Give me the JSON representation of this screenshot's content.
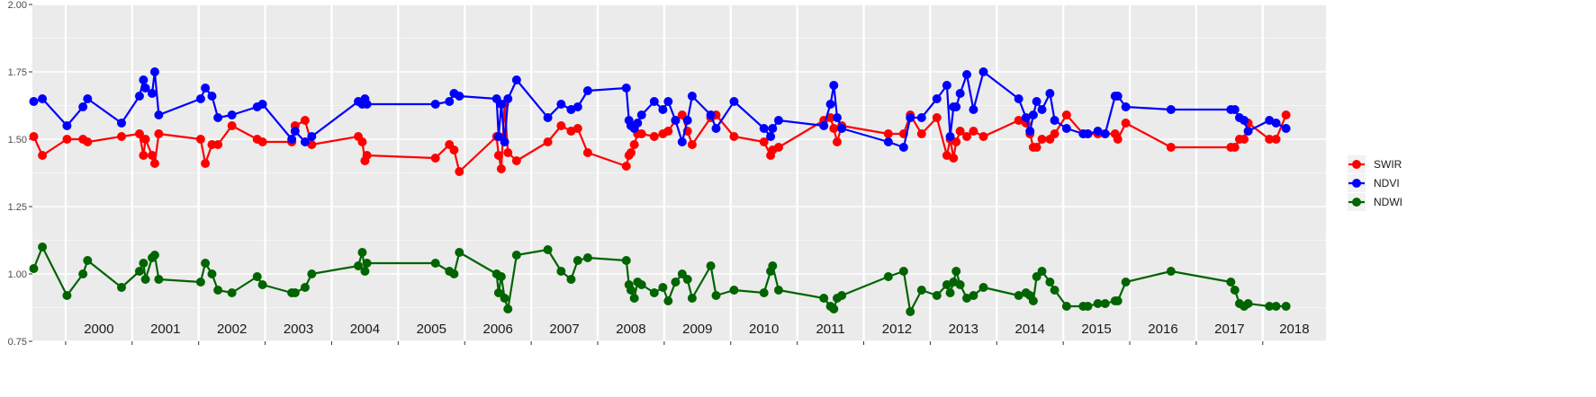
{
  "chart_data": {
    "type": "line",
    "title": "",
    "xlabel": "",
    "ylabel": "",
    "xlim": [
      1999.5,
      2018.95
    ],
    "ylim": [
      0.75,
      2.0
    ],
    "y_ticks": [
      "0.75",
      "1.00",
      "1.25",
      "1.50",
      "1.75",
      "2.00"
    ],
    "y_tick_values": [
      0.75,
      1.0,
      1.25,
      1.5,
      1.75,
      2.0
    ],
    "year_labels": [
      "2000",
      "2001",
      "2002",
      "2003",
      "2004",
      "2005",
      "2006",
      "2007",
      "2008",
      "2009",
      "2010",
      "2011",
      "2012",
      "2013",
      "2014",
      "2015",
      "2016",
      "2017",
      "2018"
    ],
    "year_boundaries": [
      2000,
      2001,
      2002,
      2003,
      2004,
      2005,
      2006,
      2007,
      2008,
      2009,
      2010,
      2011,
      2012,
      2013,
      2014,
      2015,
      2016,
      2017,
      2018
    ],
    "grid": true,
    "legend_position": "right",
    "series": [
      {
        "name": "SWIR",
        "color": "#ff0000",
        "x": [
          1999.52,
          1999.65,
          2000.02,
          2000.26,
          2000.33,
          2000.84,
          2001.11,
          2001.17,
          2001.2,
          2001.3,
          2001.34,
          2001.4,
          2002.03,
          2002.1,
          2002.2,
          2002.29,
          2002.5,
          2002.88,
          2002.96,
          2003.4,
          2003.45,
          2003.6,
          2003.7,
          2004.4,
          2004.46,
          2004.5,
          2004.53,
          2005.56,
          2005.77,
          2005.84,
          2005.92,
          2006.48,
          2006.51,
          2006.55,
          2006.6,
          2006.65,
          2006.78,
          2007.25,
          2007.45,
          2007.6,
          2007.7,
          2007.85,
          2008.43,
          2008.47,
          2008.5,
          2008.55,
          2008.6,
          2008.66,
          2008.85,
          2008.98,
          2009.06,
          2009.17,
          2009.27,
          2009.35,
          2009.42,
          2009.7,
          2009.78,
          2010.05,
          2010.5,
          2010.6,
          2010.63,
          2010.72,
          2011.4,
          2011.5,
          2011.55,
          2011.6,
          2011.67,
          2012.37,
          2012.6,
          2012.7,
          2012.87,
          2013.1,
          2013.25,
          2013.3,
          2013.35,
          2013.39,
          2013.45,
          2013.55,
          2013.65,
          2013.8,
          2014.33,
          2014.44,
          2014.5,
          2014.55,
          2014.6,
          2014.68,
          2014.8,
          2014.87,
          2015.05,
          2015.3,
          2015.37,
          2015.52,
          2015.63,
          2015.78,
          2015.82,
          2015.94,
          2016.62,
          2017.52,
          2017.58,
          2017.65,
          2017.72,
          2017.78,
          2018.1,
          2018.2,
          2018.35
        ],
        "values": [
          1.51,
          1.44,
          1.5,
          1.5,
          1.49,
          1.51,
          1.52,
          1.44,
          1.5,
          1.44,
          1.41,
          1.52,
          1.5,
          1.41,
          1.48,
          1.48,
          1.55,
          1.5,
          1.49,
          1.49,
          1.55,
          1.57,
          1.48,
          1.51,
          1.49,
          1.42,
          1.44,
          1.43,
          1.48,
          1.46,
          1.38,
          1.51,
          1.44,
          1.39,
          1.63,
          1.45,
          1.42,
          1.49,
          1.55,
          1.53,
          1.54,
          1.45,
          1.4,
          1.44,
          1.45,
          1.48,
          1.52,
          1.52,
          1.51,
          1.52,
          1.53,
          1.57,
          1.59,
          1.53,
          1.48,
          1.58,
          1.59,
          1.51,
          1.49,
          1.44,
          1.46,
          1.47,
          1.57,
          1.58,
          1.54,
          1.49,
          1.55,
          1.52,
          1.52,
          1.59,
          1.52,
          1.58,
          1.44,
          1.5,
          1.43,
          1.49,
          1.53,
          1.51,
          1.53,
          1.51,
          1.57,
          1.56,
          1.52,
          1.47,
          1.47,
          1.5,
          1.5,
          1.52,
          1.59,
          1.52,
          1.52,
          1.52,
          1.52,
          1.52,
          1.5,
          1.56,
          1.47,
          1.47,
          1.47,
          1.5,
          1.5,
          1.56,
          1.5,
          1.5,
          1.59
        ]
      },
      {
        "name": "NDVI",
        "color": "#0000ff",
        "x": [
          1999.52,
          1999.65,
          2000.02,
          2000.26,
          2000.33,
          2000.84,
          2001.11,
          2001.17,
          2001.2,
          2001.3,
          2001.34,
          2001.4,
          2002.03,
          2002.1,
          2002.2,
          2002.29,
          2002.5,
          2002.88,
          2002.96,
          2003.4,
          2003.45,
          2003.6,
          2003.7,
          2004.4,
          2004.46,
          2004.5,
          2004.53,
          2005.56,
          2005.77,
          2005.84,
          2005.92,
          2006.48,
          2006.51,
          2006.55,
          2006.6,
          2006.65,
          2006.78,
          2007.25,
          2007.45,
          2007.6,
          2007.7,
          2007.85,
          2008.43,
          2008.47,
          2008.5,
          2008.55,
          2008.6,
          2008.66,
          2008.85,
          2008.98,
          2009.06,
          2009.17,
          2009.27,
          2009.35,
          2009.42,
          2009.7,
          2009.78,
          2010.05,
          2010.5,
          2010.6,
          2010.63,
          2010.72,
          2011.4,
          2011.5,
          2011.55,
          2011.6,
          2011.67,
          2012.37,
          2012.6,
          2012.7,
          2012.87,
          2013.1,
          2013.25,
          2013.3,
          2013.35,
          2013.39,
          2013.45,
          2013.55,
          2013.65,
          2013.8,
          2014.33,
          2014.44,
          2014.5,
          2014.55,
          2014.6,
          2014.68,
          2014.8,
          2014.87,
          2015.05,
          2015.3,
          2015.37,
          2015.52,
          2015.63,
          2015.78,
          2015.82,
          2015.94,
          2016.62,
          2017.52,
          2017.58,
          2017.65,
          2017.72,
          2017.78,
          2018.1,
          2018.2,
          2018.35
        ],
        "values": [
          1.64,
          1.65,
          1.55,
          1.62,
          1.65,
          1.56,
          1.66,
          1.72,
          1.69,
          1.67,
          1.75,
          1.59,
          1.65,
          1.69,
          1.66,
          1.58,
          1.59,
          1.62,
          1.63,
          1.5,
          1.53,
          1.49,
          1.51,
          1.64,
          1.63,
          1.65,
          1.63,
          1.63,
          1.64,
          1.67,
          1.66,
          1.65,
          1.51,
          1.63,
          1.49,
          1.65,
          1.72,
          1.58,
          1.63,
          1.61,
          1.62,
          1.68,
          1.69,
          1.57,
          1.55,
          1.54,
          1.56,
          1.59,
          1.64,
          1.61,
          1.64,
          1.57,
          1.49,
          1.57,
          1.66,
          1.59,
          1.54,
          1.64,
          1.54,
          1.51,
          1.54,
          1.57,
          1.55,
          1.63,
          1.7,
          1.58,
          1.54,
          1.49,
          1.47,
          1.58,
          1.58,
          1.65,
          1.7,
          1.51,
          1.62,
          1.62,
          1.67,
          1.74,
          1.61,
          1.75,
          1.65,
          1.58,
          1.53,
          1.59,
          1.64,
          1.61,
          1.67,
          1.57,
          1.54,
          1.52,
          1.52,
          1.53,
          1.52,
          1.66,
          1.66,
          1.62,
          1.61,
          1.61,
          1.61,
          1.58,
          1.57,
          1.53,
          1.57,
          1.56,
          1.54
        ]
      },
      {
        "name": "NDWI",
        "color": "#006400",
        "x": [
          1999.52,
          1999.65,
          2000.02,
          2000.26,
          2000.33,
          2000.84,
          2001.11,
          2001.17,
          2001.2,
          2001.3,
          2001.34,
          2001.4,
          2002.03,
          2002.1,
          2002.2,
          2002.29,
          2002.5,
          2002.88,
          2002.96,
          2003.4,
          2003.45,
          2003.6,
          2003.7,
          2004.4,
          2004.46,
          2004.5,
          2004.53,
          2005.56,
          2005.77,
          2005.84,
          2005.92,
          2006.48,
          2006.51,
          2006.55,
          2006.6,
          2006.65,
          2006.78,
          2007.25,
          2007.45,
          2007.6,
          2007.7,
          2007.85,
          2008.43,
          2008.47,
          2008.5,
          2008.55,
          2008.6,
          2008.66,
          2008.85,
          2008.98,
          2009.06,
          2009.17,
          2009.27,
          2009.35,
          2009.42,
          2009.7,
          2009.78,
          2010.05,
          2010.5,
          2010.6,
          2010.63,
          2010.72,
          2011.4,
          2011.5,
          2011.55,
          2011.6,
          2011.67,
          2012.37,
          2012.6,
          2012.7,
          2012.87,
          2013.1,
          2013.25,
          2013.3,
          2013.35,
          2013.39,
          2013.45,
          2013.55,
          2013.65,
          2013.8,
          2014.33,
          2014.44,
          2014.5,
          2014.55,
          2014.6,
          2014.68,
          2014.8,
          2014.87,
          2015.05,
          2015.3,
          2015.37,
          2015.52,
          2015.63,
          2015.78,
          2015.82,
          2015.94,
          2016.62,
          2017.52,
          2017.58,
          2017.65,
          2017.72,
          2017.78,
          2018.1,
          2018.2,
          2018.35
        ],
        "values": [
          1.02,
          1.1,
          0.92,
          1.0,
          1.05,
          0.95,
          1.01,
          1.04,
          0.98,
          1.06,
          1.07,
          0.98,
          0.97,
          1.04,
          1.0,
          0.94,
          0.93,
          0.99,
          0.96,
          0.93,
          0.93,
          0.95,
          1.0,
          1.03,
          1.08,
          1.01,
          1.04,
          1.04,
          1.01,
          1.0,
          1.08,
          1.0,
          0.93,
          0.99,
          0.91,
          0.87,
          1.07,
          1.09,
          1.01,
          0.98,
          1.05,
          1.06,
          1.05,
          0.96,
          0.94,
          0.91,
          0.97,
          0.96,
          0.93,
          0.95,
          0.9,
          0.97,
          1.0,
          0.98,
          0.91,
          1.03,
          0.92,
          0.94,
          0.93,
          1.01,
          1.03,
          0.94,
          0.91,
          0.88,
          0.87,
          0.91,
          0.92,
          0.99,
          1.01,
          0.86,
          0.94,
          0.92,
          0.96,
          0.93,
          0.97,
          1.01,
          0.96,
          0.91,
          0.92,
          0.95,
          0.92,
          0.93,
          0.92,
          0.9,
          0.99,
          1.01,
          0.97,
          0.94,
          0.88,
          0.88,
          0.88,
          0.89,
          0.89,
          0.9,
          0.9,
          0.97,
          1.01,
          0.97,
          0.94,
          0.89,
          0.88,
          0.89,
          0.88,
          0.88,
          0.88
        ]
      }
    ]
  }
}
